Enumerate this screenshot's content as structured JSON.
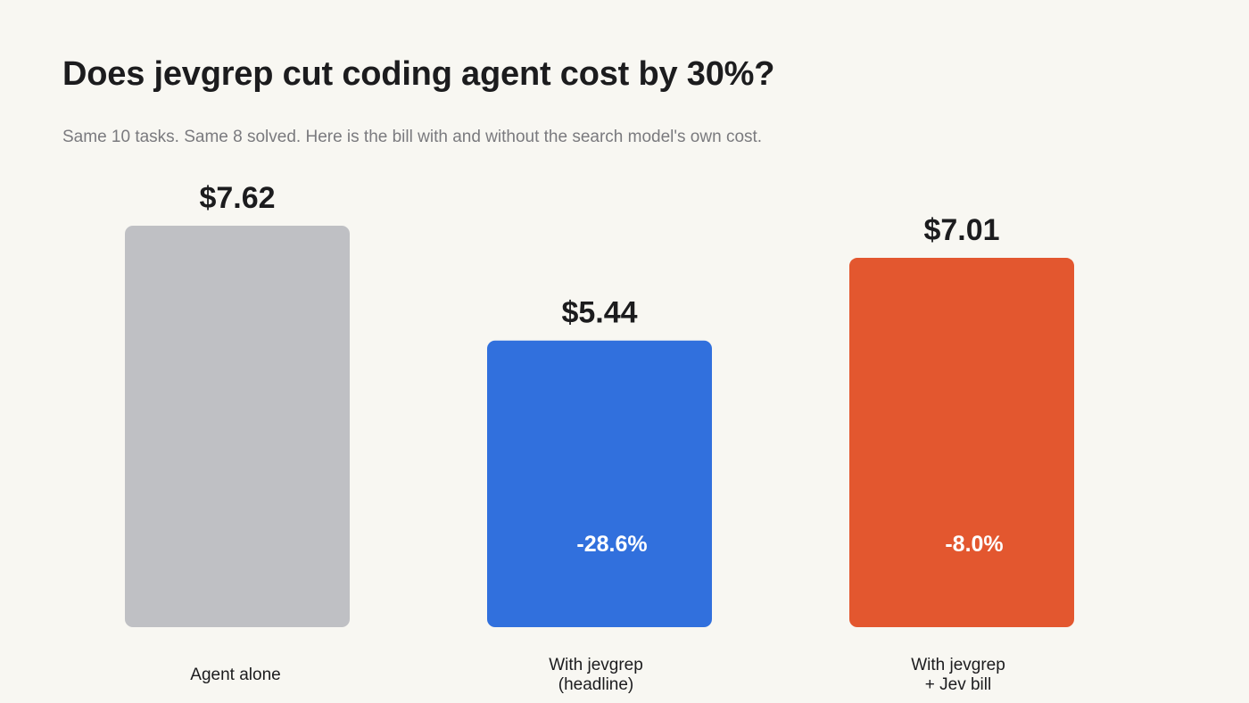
{
  "title": "Does jevgrep cut coding agent cost by 30%?",
  "subtitle": "Same 10 tasks. Same 8 solved. Here is the bill with and without the search model's own cost.",
  "chart_data": {
    "type": "bar",
    "categories": [
      [
        "Agent alone"
      ],
      [
        "With jevgrep",
        "(headline)"
      ],
      [
        "With jevgrep",
        "+ Jev bill"
      ]
    ],
    "values": [
      7.62,
      5.44,
      7.01
    ],
    "value_labels": [
      "$7.62",
      "$5.44",
      "$7.01"
    ],
    "delta_labels": [
      "",
      "-28.6%",
      "-8.0%"
    ],
    "colors": [
      "#bfc0c4",
      "#3170dd",
      "#e3572f"
    ],
    "ylim": [
      0,
      7.62
    ],
    "grid": false,
    "legend": "none",
    "xlabel": "",
    "ylabel": ""
  }
}
